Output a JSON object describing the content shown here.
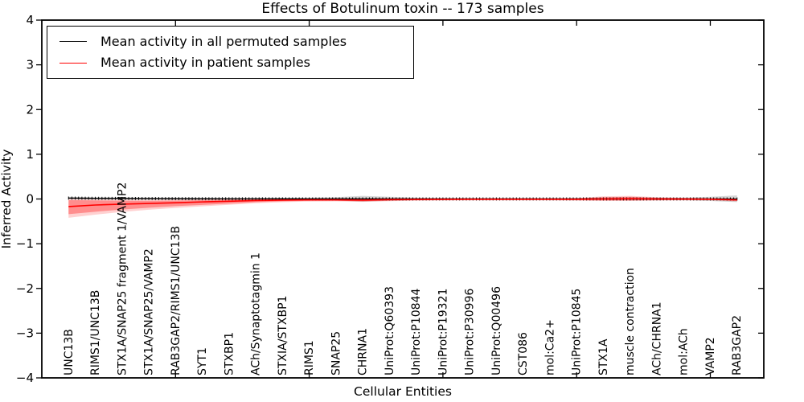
{
  "chart_data": {
    "type": "line",
    "title": "Effects of Botulinum toxin -- 173 samples",
    "xlabel": "Cellular Entities",
    "ylabel": "Inferred Activity",
    "ylim": [
      -4,
      4
    ],
    "y_tick_labels": [
      "4",
      "3",
      "2",
      "1",
      "0",
      "−1",
      "−2",
      "−3",
      "−4"
    ],
    "y_tick_values": [
      4,
      3,
      2,
      1,
      0,
      -1,
      -2,
      -3,
      -4
    ],
    "x_major_tick_positions": [
      5,
      10,
      15,
      20,
      25
    ],
    "grid": false,
    "legend_position": "upper left",
    "categories": [
      "UNC13B",
      "RIMS1/UNC13B",
      "STX1A/SNAP25 fragment 1/VAMP2",
      "STX1A/SNAP25/VAMP2",
      "RAB3GAP2/RIMS1/UNC13B",
      "SYT1",
      "STXBP1",
      "ACh/Synaptotagmin 1",
      "STXIA/STXBP1",
      "RIMS1",
      "SNAP25",
      "CHRNA1",
      "UniProt:Q60393",
      "UniProt:P10844",
      "UniProt:P19321",
      "UniProt:P30996",
      "UniProt:Q00496",
      "CST086",
      "mol:Ca2+",
      "UniProt:P10845",
      "STX1A",
      "muscle contraction",
      "ACh/CHRNA1",
      "mol:ACh",
      "VAMP2",
      "RAB3GAP2"
    ],
    "series": [
      {
        "name": "Mean activity in all permuted samples",
        "color": "#000000",
        "style": "line-with-tick-markers",
        "values": [
          0.02,
          0.015,
          0.012,
          0.01,
          0.008,
          0.006,
          0.005,
          0.004,
          0.003,
          0.002,
          0.002,
          0.002,
          0.001,
          0.001,
          0.001,
          0.001,
          0.001,
          0.001,
          0.001,
          0.001,
          0.001,
          0.001,
          0.001,
          0.001,
          0.001,
          0.0
        ]
      },
      {
        "name": "Mean activity in patient samples",
        "color": "#ff0000",
        "style": "line",
        "values": [
          -0.17,
          -0.135,
          -0.115,
          -0.1,
          -0.085,
          -0.065,
          -0.05,
          -0.035,
          -0.025,
          -0.02,
          -0.02,
          -0.025,
          -0.015,
          -0.01,
          -0.008,
          -0.006,
          -0.005,
          -0.005,
          -0.005,
          -0.005,
          0.0,
          0.005,
          0.0,
          -0.002,
          -0.005,
          -0.02
        ]
      }
    ],
    "bands": [
      {
        "name": "permuted samples confidence band",
        "color": "rgba(0,0,0,0.16)",
        "upper": [
          0.05,
          0.04,
          0.035,
          0.03,
          0.03,
          0.028,
          0.026,
          0.025,
          0.025,
          0.03,
          0.04,
          0.07,
          0.05,
          0.03,
          0.025,
          0.025,
          0.025,
          0.025,
          0.025,
          0.025,
          0.03,
          0.035,
          0.03,
          0.03,
          0.05,
          0.08
        ],
        "lower": [
          -0.01,
          -0.012,
          -0.015,
          -0.015,
          -0.018,
          -0.02,
          -0.02,
          -0.02,
          -0.02,
          -0.025,
          -0.035,
          -0.06,
          -0.04,
          -0.025,
          -0.022,
          -0.022,
          -0.022,
          -0.022,
          -0.022,
          -0.022,
          -0.025,
          -0.03,
          -0.026,
          -0.026,
          -0.045,
          -0.07
        ]
      },
      {
        "name": "patient samples outer confidence band",
        "color": "rgba(255,0,0,0.18)",
        "upper": [
          0.0,
          -0.01,
          -0.015,
          -0.02,
          -0.015,
          -0.008,
          0.0,
          0.006,
          0.012,
          0.016,
          0.02,
          0.02,
          0.02,
          0.016,
          0.015,
          0.015,
          0.015,
          0.015,
          0.015,
          0.02,
          0.06,
          0.07,
          0.04,
          0.025,
          0.015,
          0.012
        ],
        "lower": [
          -0.42,
          -0.35,
          -0.29,
          -0.24,
          -0.2,
          -0.165,
          -0.13,
          -0.095,
          -0.072,
          -0.058,
          -0.055,
          -0.065,
          -0.05,
          -0.038,
          -0.032,
          -0.03,
          -0.03,
          -0.03,
          -0.03,
          -0.035,
          -0.045,
          -0.045,
          -0.036,
          -0.03,
          -0.03,
          -0.055
        ]
      },
      {
        "name": "patient samples inner confidence band",
        "color": "rgba(255,0,0,0.32)",
        "upper": [
          -0.025,
          -0.032,
          -0.038,
          -0.04,
          -0.035,
          -0.028,
          -0.018,
          -0.008,
          0.002,
          0.007,
          0.01,
          0.01,
          0.01,
          0.009,
          0.008,
          0.008,
          0.008,
          0.008,
          0.008,
          0.012,
          0.04,
          0.05,
          0.026,
          0.016,
          0.01,
          0.006
        ],
        "lower": [
          -0.34,
          -0.285,
          -0.235,
          -0.195,
          -0.16,
          -0.132,
          -0.103,
          -0.073,
          -0.053,
          -0.042,
          -0.04,
          -0.05,
          -0.037,
          -0.028,
          -0.024,
          -0.023,
          -0.023,
          -0.023,
          -0.023,
          -0.027,
          -0.032,
          -0.032,
          -0.027,
          -0.022,
          -0.022,
          -0.042
        ]
      }
    ]
  },
  "colors": {
    "frame": "#000000",
    "background": "#ffffff",
    "permuted_line": "#000000",
    "patient_line": "#ff0000"
  }
}
